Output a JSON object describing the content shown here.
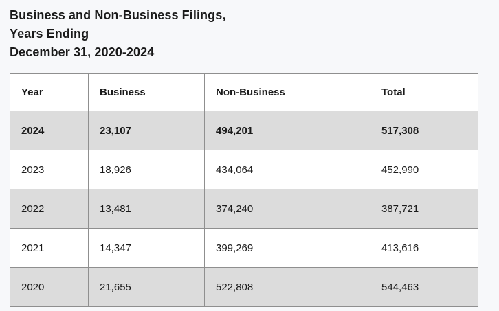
{
  "title": {
    "line1": "Business and Non-Business Filings,",
    "line2": "Years Ending",
    "line3": "December 31, 2020-2024"
  },
  "table": {
    "headers": [
      "Year",
      "Business",
      "Non-Business",
      "Total"
    ],
    "rows": [
      {
        "cells": [
          "2024",
          "23,107",
          "494,201",
          "517,308"
        ],
        "highlighted": true
      },
      {
        "cells": [
          "2023",
          "18,926",
          "434,064",
          "452,990"
        ],
        "highlighted": false
      },
      {
        "cells": [
          "2022",
          "13,481",
          "374,240",
          "387,721"
        ],
        "highlighted": false
      },
      {
        "cells": [
          "2021",
          "14,347",
          "399,269",
          "413,616"
        ],
        "highlighted": false
      },
      {
        "cells": [
          "2020",
          "21,655",
          "522,808",
          "544,463"
        ],
        "highlighted": false
      }
    ]
  },
  "colors": {
    "page_background": "#f7f8fa",
    "row_shaded": "#dcdcdc",
    "row_plain": "#ffffff",
    "border": "#8f8f8f",
    "text": "#1b1b1b"
  },
  "chart_data": {
    "type": "table",
    "title": "Business and Non-Business Filings, Years Ending December 31, 2020-2024",
    "columns": [
      "Year",
      "Business",
      "Non-Business",
      "Total"
    ],
    "rows": [
      [
        2024,
        23107,
        494201,
        517308
      ],
      [
        2023,
        18926,
        434064,
        452990
      ],
      [
        2022,
        13481,
        374240,
        387721
      ],
      [
        2021,
        14347,
        399269,
        413616
      ],
      [
        2020,
        21655,
        522808,
        544463
      ]
    ],
    "notes": "2024 row rendered bold; rows alternate shaded (#dcdcdc) and white starting with shaded 2024 row; header row white bold"
  }
}
